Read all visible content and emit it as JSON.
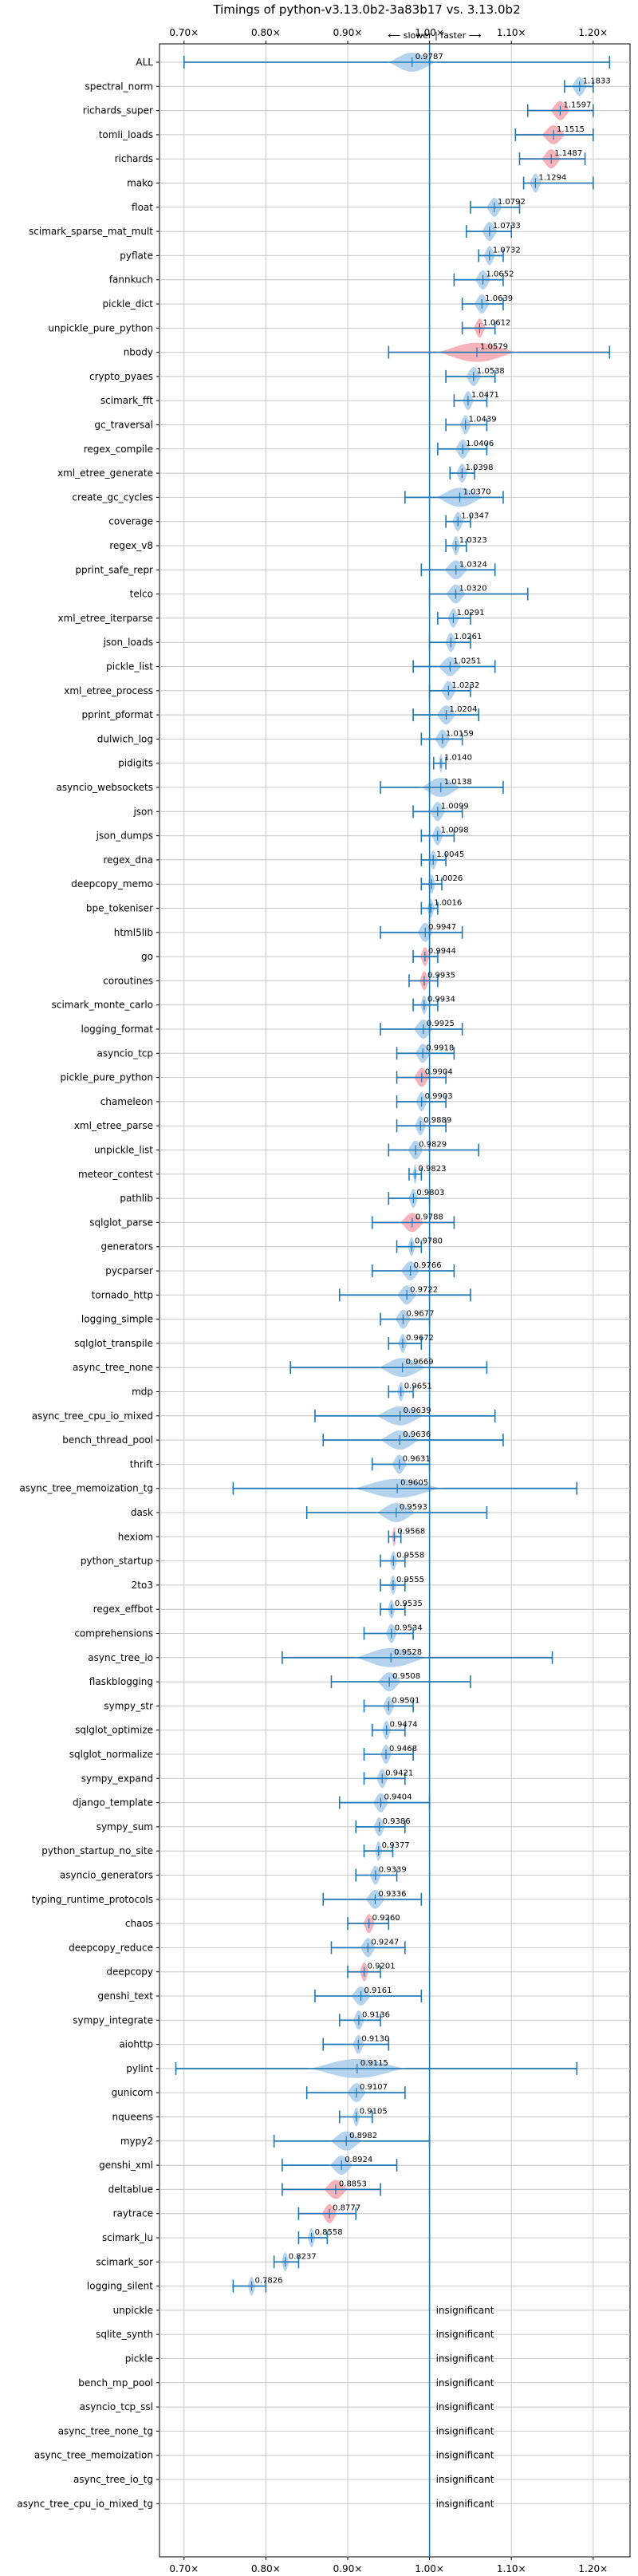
{
  "chart_data": {
    "type": "violin",
    "title": "Timings of python-v3.13.0b2-3a83b17 vs. 3.13.0b2",
    "subtitle": "⟵ slower | faster ⟶",
    "xlim": [
      0.67,
      1.245
    ],
    "xticks": [
      0.7,
      0.8,
      0.9,
      1.0,
      1.1,
      1.2
    ],
    "xtick_labels": [
      "0.70×",
      "0.80×",
      "0.90×",
      "1.00×",
      "1.10×",
      "1.20×"
    ],
    "grid": true,
    "reference_x": 1.0,
    "insignificant_label": "insignificant",
    "colors": {
      "faster": "#a9cbea",
      "slower": "#f4a6ae",
      "line": "#1f77b4"
    },
    "benchmarks": [
      {
        "name": "ALL",
        "value": 0.9787,
        "lo": 0.7,
        "hi": 1.22,
        "width": 0.06,
        "color": "blue"
      },
      {
        "name": "spectral_norm",
        "value": 1.1833,
        "lo": 1.165,
        "hi": 1.2,
        "width": 0.02,
        "color": "blue"
      },
      {
        "name": "richards_super",
        "value": 1.1597,
        "lo": 1.12,
        "hi": 1.2,
        "width": 0.025,
        "color": "red"
      },
      {
        "name": "tomli_loads",
        "value": 1.1515,
        "lo": 1.105,
        "hi": 1.2,
        "width": 0.03,
        "color": "red"
      },
      {
        "name": "richards",
        "value": 1.1487,
        "lo": 1.11,
        "hi": 1.19,
        "width": 0.025,
        "color": "red"
      },
      {
        "name": "mako",
        "value": 1.1294,
        "lo": 1.115,
        "hi": 1.2,
        "width": 0.015,
        "color": "blue"
      },
      {
        "name": "float",
        "value": 1.0792,
        "lo": 1.05,
        "hi": 1.11,
        "width": 0.02,
        "color": "blue"
      },
      {
        "name": "scimark_sparse_mat_mult",
        "value": 1.0733,
        "lo": 1.045,
        "hi": 1.1,
        "width": 0.02,
        "color": "blue"
      },
      {
        "name": "pyflate",
        "value": 1.0732,
        "lo": 1.06,
        "hi": 1.09,
        "width": 0.015,
        "color": "blue"
      },
      {
        "name": "fannkuch",
        "value": 1.0652,
        "lo": 1.03,
        "hi": 1.09,
        "width": 0.02,
        "color": "blue"
      },
      {
        "name": "pickle_dict",
        "value": 1.0639,
        "lo": 1.04,
        "hi": 1.09,
        "width": 0.02,
        "color": "blue"
      },
      {
        "name": "unpickle_pure_python",
        "value": 1.0612,
        "lo": 1.04,
        "hi": 1.08,
        "width": 0.015,
        "color": "red"
      },
      {
        "name": "nbody",
        "value": 1.0579,
        "lo": 0.95,
        "hi": 1.22,
        "width": 0.1,
        "color": "red"
      },
      {
        "name": "crypto_pyaes",
        "value": 1.0538,
        "lo": 1.02,
        "hi": 1.08,
        "width": 0.02,
        "color": "blue"
      },
      {
        "name": "scimark_fft",
        "value": 1.0471,
        "lo": 1.03,
        "hi": 1.07,
        "width": 0.015,
        "color": "blue"
      },
      {
        "name": "gc_traversal",
        "value": 1.0439,
        "lo": 1.02,
        "hi": 1.07,
        "width": 0.015,
        "color": "blue"
      },
      {
        "name": "regex_compile",
        "value": 1.0406,
        "lo": 1.01,
        "hi": 1.07,
        "width": 0.02,
        "color": "blue"
      },
      {
        "name": "xml_etree_generate",
        "value": 1.0398,
        "lo": 1.025,
        "hi": 1.055,
        "width": 0.015,
        "color": "blue"
      },
      {
        "name": "create_gc_cycles",
        "value": 1.037,
        "lo": 0.97,
        "hi": 1.09,
        "width": 0.06,
        "color": "blue"
      },
      {
        "name": "coverage",
        "value": 1.0347,
        "lo": 1.02,
        "hi": 1.05,
        "width": 0.015,
        "color": "blue"
      },
      {
        "name": "regex_v8",
        "value": 1.0323,
        "lo": 1.02,
        "hi": 1.045,
        "width": 0.012,
        "color": "blue"
      },
      {
        "name": "pprint_safe_repr",
        "value": 1.0324,
        "lo": 0.99,
        "hi": 1.08,
        "width": 0.03,
        "color": "blue"
      },
      {
        "name": "telco",
        "value": 1.032,
        "lo": 1.0,
        "hi": 1.12,
        "width": 0.025,
        "color": "blue"
      },
      {
        "name": "xml_etree_iterparse",
        "value": 1.0291,
        "lo": 1.01,
        "hi": 1.05,
        "width": 0.015,
        "color": "blue"
      },
      {
        "name": "json_loads",
        "value": 1.0261,
        "lo": 1.0,
        "hi": 1.05,
        "width": 0.015,
        "color": "blue"
      },
      {
        "name": "pickle_list",
        "value": 1.0251,
        "lo": 0.98,
        "hi": 1.08,
        "width": 0.03,
        "color": "blue"
      },
      {
        "name": "xml_etree_process",
        "value": 1.0232,
        "lo": 1.0,
        "hi": 1.05,
        "width": 0.02,
        "color": "blue"
      },
      {
        "name": "pprint_pformat",
        "value": 1.0204,
        "lo": 0.98,
        "hi": 1.06,
        "width": 0.025,
        "color": "blue"
      },
      {
        "name": "dulwich_log",
        "value": 1.0159,
        "lo": 0.99,
        "hi": 1.04,
        "width": 0.02,
        "color": "blue"
      },
      {
        "name": "pidigits",
        "value": 1.014,
        "lo": 1.005,
        "hi": 1.02,
        "width": 0.006,
        "color": "blue"
      },
      {
        "name": "asyncio_websockets",
        "value": 1.0138,
        "lo": 0.94,
        "hi": 1.09,
        "width": 0.05,
        "color": "blue"
      },
      {
        "name": "json",
        "value": 1.0099,
        "lo": 0.98,
        "hi": 1.04,
        "width": 0.02,
        "color": "blue"
      },
      {
        "name": "json_dumps",
        "value": 1.0098,
        "lo": 0.99,
        "hi": 1.03,
        "width": 0.015,
        "color": "blue"
      },
      {
        "name": "regex_dna",
        "value": 1.0045,
        "lo": 0.99,
        "hi": 1.02,
        "width": 0.012,
        "color": "blue"
      },
      {
        "name": "deepcopy_memo",
        "value": 1.0026,
        "lo": 0.99,
        "hi": 1.015,
        "width": 0.01,
        "color": "blue"
      },
      {
        "name": "bpe_tokeniser",
        "value": 1.0016,
        "lo": 0.99,
        "hi": 1.01,
        "width": 0.01,
        "color": "blue"
      },
      {
        "name": "html5lib",
        "value": 0.9947,
        "lo": 0.94,
        "hi": 1.04,
        "width": 0.02,
        "color": "blue"
      },
      {
        "name": "go",
        "value": 0.9944,
        "lo": 0.98,
        "hi": 1.01,
        "width": 0.012,
        "color": "red"
      },
      {
        "name": "coroutines",
        "value": 0.9935,
        "lo": 0.975,
        "hi": 1.01,
        "width": 0.012,
        "color": "red"
      },
      {
        "name": "scimark_monte_carlo",
        "value": 0.9934,
        "lo": 0.98,
        "hi": 1.01,
        "width": 0.01,
        "color": "blue"
      },
      {
        "name": "logging_format",
        "value": 0.9925,
        "lo": 0.94,
        "hi": 1.04,
        "width": 0.025,
        "color": "blue"
      },
      {
        "name": "asyncio_tcp",
        "value": 0.9918,
        "lo": 0.96,
        "hi": 1.03,
        "width": 0.02,
        "color": "blue"
      },
      {
        "name": "pickle_pure_python",
        "value": 0.9904,
        "lo": 0.96,
        "hi": 1.02,
        "width": 0.02,
        "color": "red"
      },
      {
        "name": "chameleon",
        "value": 0.9903,
        "lo": 0.96,
        "hi": 1.02,
        "width": 0.015,
        "color": "blue"
      },
      {
        "name": "xml_etree_parse",
        "value": 0.9889,
        "lo": 0.96,
        "hi": 1.02,
        "width": 0.015,
        "color": "blue"
      },
      {
        "name": "unpickle_list",
        "value": 0.9829,
        "lo": 0.95,
        "hi": 1.06,
        "width": 0.02,
        "color": "blue"
      },
      {
        "name": "meteor_contest",
        "value": 0.9823,
        "lo": 0.975,
        "hi": 0.99,
        "width": 0.006,
        "color": "blue"
      },
      {
        "name": "pathlib",
        "value": 0.9803,
        "lo": 0.95,
        "hi": 1.0,
        "width": 0.012,
        "color": "blue"
      },
      {
        "name": "sqlglot_parse",
        "value": 0.9788,
        "lo": 0.93,
        "hi": 1.03,
        "width": 0.03,
        "color": "red"
      },
      {
        "name": "generators",
        "value": 0.978,
        "lo": 0.96,
        "hi": 0.99,
        "width": 0.01,
        "color": "blue"
      },
      {
        "name": "pycparser",
        "value": 0.9766,
        "lo": 0.93,
        "hi": 1.03,
        "width": 0.025,
        "color": "blue"
      },
      {
        "name": "tornado_http",
        "value": 0.9722,
        "lo": 0.89,
        "hi": 1.05,
        "width": 0.025,
        "color": "blue"
      },
      {
        "name": "logging_simple",
        "value": 0.9677,
        "lo": 0.94,
        "hi": 1.0,
        "width": 0.02,
        "color": "blue"
      },
      {
        "name": "sqlglot_transpile",
        "value": 0.9672,
        "lo": 0.95,
        "hi": 0.99,
        "width": 0.012,
        "color": "blue"
      },
      {
        "name": "async_tree_none",
        "value": 0.9669,
        "lo": 0.83,
        "hi": 1.07,
        "width": 0.06,
        "color": "blue"
      },
      {
        "name": "mdp",
        "value": 0.9651,
        "lo": 0.95,
        "hi": 0.98,
        "width": 0.01,
        "color": "blue"
      },
      {
        "name": "async_tree_cpu_io_mixed",
        "value": 0.9639,
        "lo": 0.86,
        "hi": 1.08,
        "width": 0.06,
        "color": "blue"
      },
      {
        "name": "bench_thread_pool",
        "value": 0.9636,
        "lo": 0.87,
        "hi": 1.09,
        "width": 0.05,
        "color": "blue"
      },
      {
        "name": "thrift",
        "value": 0.9631,
        "lo": 0.93,
        "hi": 1.0,
        "width": 0.02,
        "color": "blue"
      },
      {
        "name": "async_tree_memoization_tg",
        "value": 0.9605,
        "lo": 0.76,
        "hi": 1.18,
        "width": 0.11,
        "color": "blue"
      },
      {
        "name": "dask",
        "value": 0.9593,
        "lo": 0.85,
        "hi": 1.07,
        "width": 0.05,
        "color": "blue"
      },
      {
        "name": "hexiom",
        "value": 0.9568,
        "lo": 0.95,
        "hi": 0.965,
        "width": 0.006,
        "color": "red"
      },
      {
        "name": "python_startup",
        "value": 0.9558,
        "lo": 0.94,
        "hi": 0.97,
        "width": 0.01,
        "color": "blue"
      },
      {
        "name": "2to3",
        "value": 0.9555,
        "lo": 0.94,
        "hi": 0.97,
        "width": 0.01,
        "color": "blue"
      },
      {
        "name": "regex_effbot",
        "value": 0.9535,
        "lo": 0.94,
        "hi": 0.97,
        "width": 0.01,
        "color": "blue"
      },
      {
        "name": "comprehensions",
        "value": 0.9534,
        "lo": 0.92,
        "hi": 0.98,
        "width": 0.015,
        "color": "blue"
      },
      {
        "name": "async_tree_io",
        "value": 0.9528,
        "lo": 0.82,
        "hi": 1.15,
        "width": 0.09,
        "color": "blue"
      },
      {
        "name": "flaskblogging",
        "value": 0.9508,
        "lo": 0.88,
        "hi": 1.05,
        "width": 0.03,
        "color": "blue"
      },
      {
        "name": "sympy_str",
        "value": 0.9501,
        "lo": 0.92,
        "hi": 0.98,
        "width": 0.015,
        "color": "blue"
      },
      {
        "name": "sqlglot_optimize",
        "value": 0.9474,
        "lo": 0.93,
        "hi": 0.97,
        "width": 0.012,
        "color": "blue"
      },
      {
        "name": "sqlglot_normalize",
        "value": 0.9468,
        "lo": 0.92,
        "hi": 0.98,
        "width": 0.015,
        "color": "blue"
      },
      {
        "name": "sympy_expand",
        "value": 0.9421,
        "lo": 0.92,
        "hi": 0.97,
        "width": 0.015,
        "color": "blue"
      },
      {
        "name": "django_template",
        "value": 0.9404,
        "lo": 0.89,
        "hi": 1.0,
        "width": 0.02,
        "color": "blue"
      },
      {
        "name": "sympy_sum",
        "value": 0.9386,
        "lo": 0.91,
        "hi": 0.97,
        "width": 0.015,
        "color": "blue"
      },
      {
        "name": "python_startup_no_site",
        "value": 0.9377,
        "lo": 0.92,
        "hi": 0.955,
        "width": 0.01,
        "color": "blue"
      },
      {
        "name": "asyncio_generators",
        "value": 0.9339,
        "lo": 0.91,
        "hi": 0.96,
        "width": 0.015,
        "color": "blue"
      },
      {
        "name": "typing_runtime_protocols",
        "value": 0.9336,
        "lo": 0.87,
        "hi": 0.99,
        "width": 0.025,
        "color": "blue"
      },
      {
        "name": "chaos",
        "value": 0.926,
        "lo": 0.9,
        "hi": 0.95,
        "width": 0.015,
        "color": "red"
      },
      {
        "name": "deepcopy_reduce",
        "value": 0.9247,
        "lo": 0.88,
        "hi": 0.97,
        "width": 0.02,
        "color": "blue"
      },
      {
        "name": "deepcopy",
        "value": 0.9201,
        "lo": 0.9,
        "hi": 0.94,
        "width": 0.012,
        "color": "red"
      },
      {
        "name": "genshi_text",
        "value": 0.9161,
        "lo": 0.86,
        "hi": 0.99,
        "width": 0.025,
        "color": "blue"
      },
      {
        "name": "sympy_integrate",
        "value": 0.9136,
        "lo": 0.89,
        "hi": 0.94,
        "width": 0.015,
        "color": "blue"
      },
      {
        "name": "aiohttp",
        "value": 0.913,
        "lo": 0.87,
        "hi": 0.95,
        "width": 0.015,
        "color": "blue"
      },
      {
        "name": "pylint",
        "value": 0.9115,
        "lo": 0.69,
        "hi": 1.18,
        "width": 0.12,
        "color": "blue"
      },
      {
        "name": "gunicorn",
        "value": 0.9107,
        "lo": 0.85,
        "hi": 0.97,
        "width": 0.025,
        "color": "blue"
      },
      {
        "name": "nqueens",
        "value": 0.9105,
        "lo": 0.89,
        "hi": 0.93,
        "width": 0.01,
        "color": "blue"
      },
      {
        "name": "mypy2",
        "value": 0.8982,
        "lo": 0.81,
        "hi": 1.0,
        "width": 0.04,
        "color": "blue"
      },
      {
        "name": "genshi_xml",
        "value": 0.8924,
        "lo": 0.82,
        "hi": 0.96,
        "width": 0.03,
        "color": "blue"
      },
      {
        "name": "deltablue",
        "value": 0.8853,
        "lo": 0.82,
        "hi": 0.94,
        "width": 0.03,
        "color": "red"
      },
      {
        "name": "raytrace",
        "value": 0.8777,
        "lo": 0.84,
        "hi": 0.91,
        "width": 0.02,
        "color": "red"
      },
      {
        "name": "scimark_lu",
        "value": 0.8558,
        "lo": 0.84,
        "hi": 0.875,
        "width": 0.01,
        "color": "blue"
      },
      {
        "name": "scimark_sor",
        "value": 0.8237,
        "lo": 0.81,
        "hi": 0.84,
        "width": 0.01,
        "color": "blue"
      },
      {
        "name": "logging_silent",
        "value": 0.7826,
        "lo": 0.76,
        "hi": 0.8,
        "width": 0.01,
        "color": "blue"
      },
      {
        "name": "unpickle",
        "insignificant": true
      },
      {
        "name": "sqlite_synth",
        "insignificant": true
      },
      {
        "name": "pickle",
        "insignificant": true
      },
      {
        "name": "bench_mp_pool",
        "insignificant": true
      },
      {
        "name": "asyncio_tcp_ssl",
        "insignificant": true
      },
      {
        "name": "async_tree_none_tg",
        "insignificant": true
      },
      {
        "name": "async_tree_memoization",
        "insignificant": true
      },
      {
        "name": "async_tree_io_tg",
        "insignificant": true
      },
      {
        "name": "async_tree_cpu_io_mixed_tg",
        "insignificant": true
      }
    ]
  }
}
